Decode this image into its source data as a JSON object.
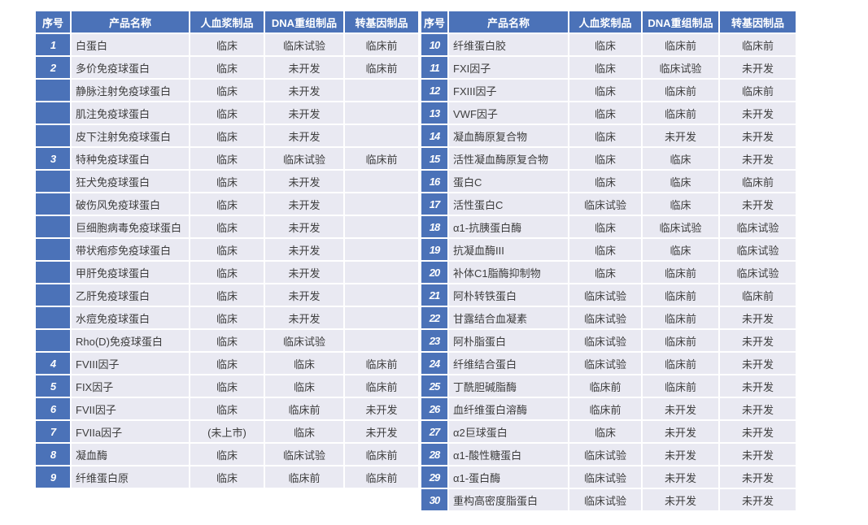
{
  "colors": {
    "header_bg": "#4b72b8",
    "row_bg": "#e9e9f2",
    "header_text": "#ffffff",
    "cell_text": "#3d3d3d",
    "page_bg": "#ffffff"
  },
  "columns": [
    "序号",
    "产品名称",
    "人血浆制品",
    "DNA重组制品",
    "转基因制品"
  ],
  "left_table": {
    "rows": [
      [
        "1",
        "白蛋白",
        "临床",
        "临床试验",
        "临床前"
      ],
      [
        "2",
        "多价免疫球蛋白",
        "临床",
        "未开发",
        "临床前"
      ],
      [
        "",
        "静脉注射免疫球蛋白",
        "临床",
        "未开发",
        ""
      ],
      [
        "",
        "肌注免疫球蛋白",
        "临床",
        "未开发",
        ""
      ],
      [
        "",
        "皮下注射免疫球蛋白",
        "临床",
        "未开发",
        ""
      ],
      [
        "3",
        "特种免疫球蛋白",
        "临床",
        "临床试验",
        "临床前"
      ],
      [
        "",
        "狂犬免疫球蛋白",
        "临床",
        "未开发",
        ""
      ],
      [
        "",
        "破伤风免疫球蛋白",
        "临床",
        "未开发",
        ""
      ],
      [
        "",
        "巨细胞病毒免疫球蛋白",
        "临床",
        "未开发",
        ""
      ],
      [
        "",
        "带状疱疹免疫球蛋白",
        "临床",
        "未开发",
        ""
      ],
      [
        "",
        "甲肝免疫球蛋白",
        "临床",
        "未开发",
        ""
      ],
      [
        "",
        "乙肝免疫球蛋白",
        "临床",
        "未开发",
        ""
      ],
      [
        "",
        "水痘免疫球蛋白",
        "临床",
        "未开发",
        ""
      ],
      [
        "",
        "Rho(D)免疫球蛋白",
        "临床",
        "临床试验",
        ""
      ],
      [
        "4",
        "FVIII因子",
        "临床",
        "临床",
        "临床前"
      ],
      [
        "5",
        "FIX因子",
        "临床",
        "临床",
        "临床前"
      ],
      [
        "6",
        "FVII因子",
        "临床",
        "临床前",
        "未开发"
      ],
      [
        "7",
        "FVIIa因子",
        "(未上市)",
        "临床",
        "未开发"
      ],
      [
        "8",
        "凝血酶",
        "临床",
        "临床试验",
        "临床前"
      ],
      [
        "9",
        "纤维蛋白原",
        "临床",
        "临床前",
        "临床前"
      ]
    ]
  },
  "right_table": {
    "rows": [
      [
        "10",
        "纤维蛋白胶",
        "临床",
        "临床前",
        "临床前"
      ],
      [
        "11",
        "FXI因子",
        "临床",
        "临床试验",
        "未开发"
      ],
      [
        "12",
        "FXIII因子",
        "临床",
        "临床前",
        "临床前"
      ],
      [
        "13",
        "VWF因子",
        "临床",
        "临床前",
        "未开发"
      ],
      [
        "14",
        "凝血酶原复合物",
        "临床",
        "未开发",
        "未开发"
      ],
      [
        "15",
        "活性凝血酶原复合物",
        "临床",
        "临床",
        "未开发"
      ],
      [
        "16",
        "蛋白C",
        "临床",
        "临床",
        "临床前"
      ],
      [
        "17",
        "活性蛋白C",
        "临床试验",
        "临床",
        "未开发"
      ],
      [
        "18",
        "α1-抗胰蛋白酶",
        "临床",
        "临床试验",
        "临床试验"
      ],
      [
        "19",
        "抗凝血酶III",
        "临床",
        "临床",
        "临床试验"
      ],
      [
        "20",
        "补体C1脂酶抑制物",
        "临床",
        "临床前",
        "临床试验"
      ],
      [
        "21",
        "阿朴转铁蛋白",
        "临床试验",
        "临床前",
        "临床前"
      ],
      [
        "22",
        "甘露结合血凝素",
        "临床试验",
        "临床前",
        "未开发"
      ],
      [
        "23",
        "阿朴脂蛋白",
        "临床试验",
        "临床前",
        "未开发"
      ],
      [
        "24",
        "纤维结合蛋白",
        "临床试验",
        "临床前",
        "未开发"
      ],
      [
        "25",
        "丁酰胆碱脂酶",
        "临床前",
        "临床前",
        "未开发"
      ],
      [
        "26",
        "血纤维蛋白溶酶",
        "临床前",
        "未开发",
        "未开发"
      ],
      [
        "27",
        "α2巨球蛋白",
        "临床",
        "未开发",
        "未开发"
      ],
      [
        "28",
        "α1-酸性糖蛋白",
        "临床试验",
        "未开发",
        "未开发"
      ],
      [
        "29",
        "α1-蛋白酶",
        "临床试验",
        "未开发",
        "未开发"
      ],
      [
        "30",
        "重构高密度脂蛋白",
        "临床试验",
        "未开发",
        "未开发"
      ]
    ]
  }
}
